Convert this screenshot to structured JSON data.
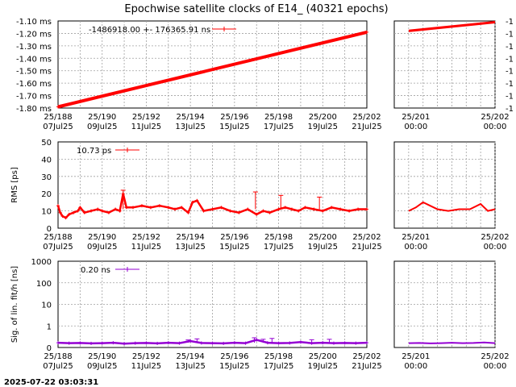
{
  "title": "Epochwise satellite clocks of E14_ (40321 epochs)",
  "timestamp": "2025-07-22 03:03:31",
  "x_ticks_main": [
    {
      "top": "25/188",
      "bottom": "07Jul25"
    },
    {
      "top": "25/190",
      "bottom": "09Jul25"
    },
    {
      "top": "25/192",
      "bottom": "11Jul25"
    },
    {
      "top": "25/194",
      "bottom": "13Jul25"
    },
    {
      "top": "25/196",
      "bottom": "15Jul25"
    },
    {
      "top": "25/198",
      "bottom": "17Jul25"
    },
    {
      "top": "25/200",
      "bottom": "19Jul25"
    },
    {
      "top": "25/202",
      "bottom": "21Jul25"
    }
  ],
  "x_ticks_zoom": [
    {
      "top": "25/201",
      "bottom": "00:00"
    },
    {
      "top": "25/202",
      "bottom": "00:00"
    }
  ],
  "colors": {
    "clock": "#ff0000",
    "rms": "#ff0000",
    "sig": "#9400d3",
    "grid": "#a0a0a0"
  },
  "chart_data": [
    {
      "type": "line",
      "name": "clock",
      "ylabel": "",
      "yticks": [
        "-1.10 ms",
        "-1.20 ms",
        "-1.30 ms",
        "-1.40 ms",
        "-1.50 ms",
        "-1.60 ms",
        "-1.70 ms",
        "-1.80 ms"
      ],
      "yticks_zoom": [
        "-1",
        "-1",
        "-1",
        "-1",
        "-1",
        "-1",
        "-1",
        "-1"
      ],
      "ylim": [
        -1.8,
        -1.1
      ],
      "legend": "-1486918.00 +-   176365.91 ns",
      "series": {
        "x": [
          188.0,
          202.0
        ],
        "y": [
          -1.79,
          -1.19
        ]
      },
      "zoom": {
        "x": [
          200.8,
          202.0
        ],
        "y": [
          -1.18,
          -1.11
        ]
      }
    },
    {
      "type": "line",
      "name": "rms",
      "ylabel": "RMS [ps]",
      "yticks": [
        "0",
        "10",
        "20",
        "30",
        "40",
        "50"
      ],
      "ylim": [
        0,
        50
      ],
      "legend": "10.73 ps",
      "series": {
        "x": [
          188.0,
          188.1,
          188.2,
          188.35,
          188.5,
          188.7,
          188.9,
          189.0,
          189.2,
          189.5,
          189.8,
          190.0,
          190.3,
          190.6,
          190.8,
          190.95,
          191.1,
          191.4,
          191.8,
          192.2,
          192.6,
          193.0,
          193.3,
          193.6,
          193.9,
          194.1,
          194.3,
          194.6,
          195.0,
          195.4,
          195.8,
          196.2,
          196.6,
          197.0,
          197.3,
          197.6,
          198.0,
          198.3,
          198.6,
          198.9,
          199.2,
          199.6,
          200.0,
          200.4,
          200.8,
          201.2,
          201.6,
          202.0
        ],
        "y": [
          13,
          9,
          7,
          6,
          8,
          9,
          10,
          12,
          9,
          10,
          11,
          10,
          9,
          11,
          10,
          20,
          12,
          12,
          13,
          12,
          13,
          12,
          11,
          12,
          9,
          15,
          16,
          10,
          11,
          12,
          10,
          9,
          11,
          8,
          10,
          9,
          11,
          12,
          11,
          10,
          12,
          11,
          10,
          12,
          11,
          10,
          11,
          11
        ]
      },
      "spikes": {
        "x": [
          190.95,
          196.95,
          198.1,
          199.85
        ],
        "y": [
          22,
          21,
          19,
          18
        ]
      },
      "zoom": {
        "x": [
          200.8,
          200.9,
          201.0,
          201.1,
          201.2,
          201.35,
          201.5,
          201.65,
          201.8,
          201.9,
          202.0
        ],
        "y": [
          10,
          12,
          15,
          13,
          11,
          10,
          11,
          11,
          14,
          10,
          11
        ]
      }
    },
    {
      "type": "line",
      "name": "sig",
      "ylabel": "Sig. of lin. fit/h [ns]",
      "yticks": [
        "0",
        "1",
        "10",
        "100",
        "1000"
      ],
      "ylim": [
        0,
        1000
      ],
      "legend": "0.20 ns",
      "series": {
        "x": [
          188.0,
          188.5,
          189.0,
          189.5,
          190.0,
          190.5,
          191.0,
          191.5,
          192.0,
          192.5,
          193.0,
          193.5,
          194.0,
          194.5,
          195.0,
          195.5,
          196.0,
          196.5,
          197.0,
          197.5,
          198.0,
          198.5,
          199.0,
          199.5,
          200.0,
          200.5,
          201.0,
          201.5,
          202.0
        ],
        "y": [
          0.22,
          0.2,
          0.21,
          0.19,
          0.2,
          0.22,
          0.18,
          0.2,
          0.21,
          0.19,
          0.22,
          0.2,
          0.3,
          0.21,
          0.2,
          0.19,
          0.22,
          0.2,
          0.35,
          0.22,
          0.2,
          0.21,
          0.25,
          0.2,
          0.22,
          0.2,
          0.21,
          0.2,
          0.22
        ]
      },
      "spikes": {
        "x": [
          193.9,
          194.3,
          196.9,
          197.3,
          197.7,
          199.5,
          200.3
        ],
        "y": [
          0.35,
          0.4,
          0.45,
          0.38,
          0.42,
          0.36,
          0.38
        ]
      },
      "zoom": {
        "x": [
          200.8,
          200.95,
          201.1,
          201.25,
          201.4,
          201.55,
          201.7,
          201.85,
          202.0
        ],
        "y": [
          0.2,
          0.21,
          0.19,
          0.2,
          0.22,
          0.2,
          0.21,
          0.23,
          0.2
        ]
      }
    }
  ]
}
